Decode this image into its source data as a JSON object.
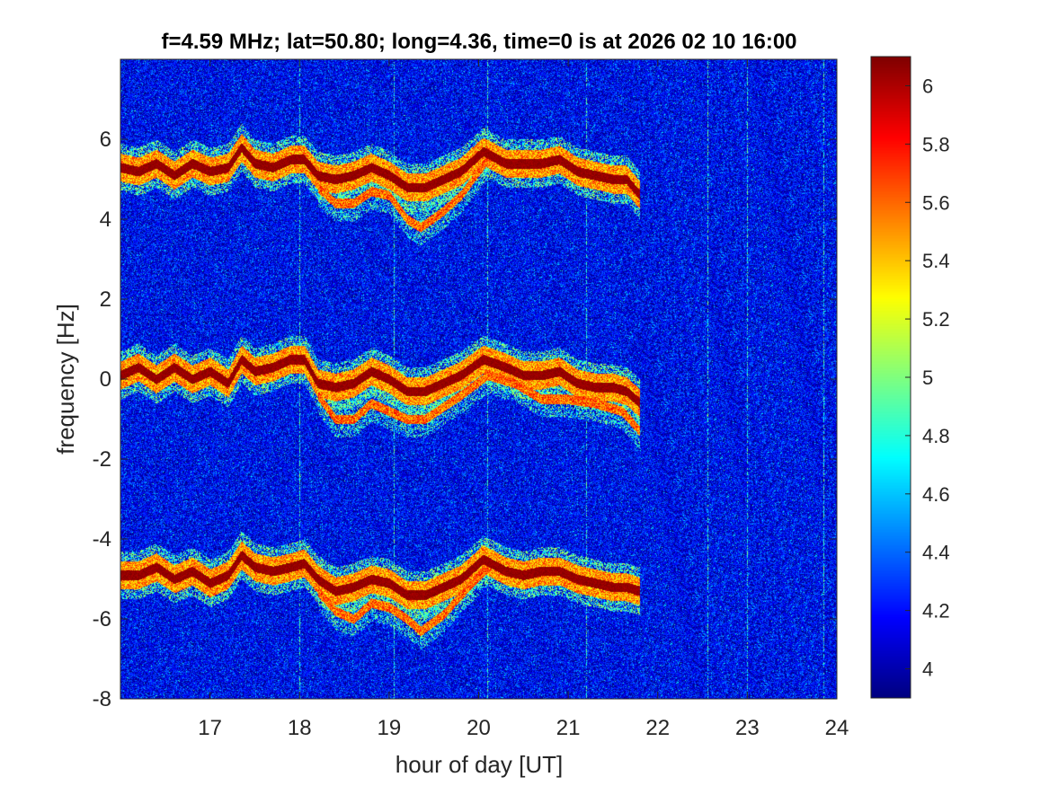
{
  "chart_data": {
    "type": "heatmap",
    "title": "f=4.59 MHz;  lat=50.80; long=4.36, time=0 is at 2026 02 10 16:00",
    "xlabel": "hour of day [UT]",
    "ylabel": "frequency [Hz]",
    "xlim": [
      16,
      24
    ],
    "ylim": [
      -8,
      8
    ],
    "x_ticks": [
      17,
      18,
      19,
      20,
      21,
      22,
      23,
      24
    ],
    "y_ticks": [
      -8,
      -6,
      -4,
      -2,
      0,
      2,
      4,
      6
    ],
    "colorbar": {
      "range": [
        3.9,
        6.1
      ],
      "ticks": [
        4,
        4.2,
        4.4,
        4.6,
        4.8,
        5,
        5.2,
        5.4,
        5.6,
        5.8,
        6
      ],
      "colormap": "jet"
    },
    "signal_end_hour": 21.8,
    "traces": [
      {
        "center_offset_hz": 0,
        "points": [
          [
            16.0,
            0.1
          ],
          [
            16.2,
            0.3
          ],
          [
            16.4,
            0.0
          ],
          [
            16.6,
            0.3
          ],
          [
            16.8,
            0.0
          ],
          [
            17.0,
            0.2
          ],
          [
            17.2,
            -0.1
          ],
          [
            17.35,
            0.5
          ],
          [
            17.5,
            0.2
          ],
          [
            17.7,
            0.3
          ],
          [
            17.9,
            0.5
          ],
          [
            18.05,
            0.5
          ],
          [
            18.2,
            -0.1
          ],
          [
            18.4,
            -0.2
          ],
          [
            18.6,
            -0.1
          ],
          [
            18.8,
            0.2
          ],
          [
            19.0,
            0.0
          ],
          [
            19.2,
            -0.3
          ],
          [
            19.4,
            -0.3
          ],
          [
            19.6,
            -0.1
          ],
          [
            19.8,
            0.1
          ],
          [
            20.05,
            0.5
          ],
          [
            20.3,
            0.3
          ],
          [
            20.5,
            0.1
          ],
          [
            20.7,
            0.1
          ],
          [
            20.9,
            0.2
          ],
          [
            21.1,
            -0.1
          ],
          [
            21.3,
            -0.2
          ],
          [
            21.5,
            -0.2
          ],
          [
            21.65,
            -0.3
          ],
          [
            21.8,
            -0.6
          ]
        ]
      },
      {
        "center_offset_hz": 5.2,
        "points": [
          [
            16.0,
            5.3
          ],
          [
            16.2,
            5.2
          ],
          [
            16.4,
            5.4
          ],
          [
            16.6,
            5.1
          ],
          [
            16.8,
            5.4
          ],
          [
            17.0,
            5.2
          ],
          [
            17.2,
            5.3
          ],
          [
            17.35,
            5.8
          ],
          [
            17.5,
            5.4
          ],
          [
            17.7,
            5.3
          ],
          [
            17.9,
            5.5
          ],
          [
            18.05,
            5.5
          ],
          [
            18.2,
            5.1
          ],
          [
            18.4,
            5.0
          ],
          [
            18.6,
            5.1
          ],
          [
            18.8,
            5.3
          ],
          [
            19.0,
            5.1
          ],
          [
            19.2,
            4.8
          ],
          [
            19.4,
            4.8
          ],
          [
            19.6,
            5.0
          ],
          [
            19.8,
            5.2
          ],
          [
            20.05,
            5.7
          ],
          [
            20.3,
            5.4
          ],
          [
            20.5,
            5.4
          ],
          [
            20.7,
            5.4
          ],
          [
            20.9,
            5.5
          ],
          [
            21.1,
            5.2
          ],
          [
            21.3,
            5.1
          ],
          [
            21.5,
            5.0
          ],
          [
            21.65,
            5.0
          ],
          [
            21.8,
            4.6
          ]
        ]
      },
      {
        "center_offset_hz": -5.0,
        "points": [
          [
            16.0,
            -4.9
          ],
          [
            16.2,
            -4.9
          ],
          [
            16.4,
            -4.7
          ],
          [
            16.6,
            -5.0
          ],
          [
            16.8,
            -4.8
          ],
          [
            17.0,
            -5.1
          ],
          [
            17.2,
            -4.9
          ],
          [
            17.35,
            -4.4
          ],
          [
            17.5,
            -4.7
          ],
          [
            17.7,
            -4.8
          ],
          [
            17.9,
            -4.7
          ],
          [
            18.05,
            -4.6
          ],
          [
            18.2,
            -5.0
          ],
          [
            18.4,
            -5.3
          ],
          [
            18.6,
            -5.2
          ],
          [
            18.8,
            -5.0
          ],
          [
            19.0,
            -5.1
          ],
          [
            19.2,
            -5.4
          ],
          [
            19.4,
            -5.4
          ],
          [
            19.6,
            -5.2
          ],
          [
            19.8,
            -5.0
          ],
          [
            20.05,
            -4.5
          ],
          [
            20.3,
            -4.8
          ],
          [
            20.5,
            -4.9
          ],
          [
            20.7,
            -4.8
          ],
          [
            20.9,
            -4.8
          ],
          [
            21.1,
            -5.0
          ],
          [
            21.3,
            -5.1
          ],
          [
            21.5,
            -5.2
          ],
          [
            21.65,
            -5.2
          ],
          [
            21.8,
            -5.3
          ]
        ]
      }
    ],
    "secondary_traces": [
      {
        "points": [
          [
            18.2,
            -0.4
          ],
          [
            18.4,
            -1.0
          ],
          [
            18.6,
            -1.0
          ],
          [
            18.8,
            -0.6
          ],
          [
            19.0,
            -0.8
          ],
          [
            19.2,
            -1.0
          ],
          [
            19.4,
            -1.0
          ],
          [
            19.6,
            -0.7
          ],
          [
            19.8,
            -0.4
          ],
          [
            20.1,
            0.1
          ],
          [
            20.4,
            -0.1
          ],
          [
            20.7,
            -0.5
          ],
          [
            21.0,
            -0.5
          ],
          [
            21.3,
            -0.6
          ],
          [
            21.6,
            -0.8
          ],
          [
            21.8,
            -1.3
          ]
        ]
      },
      {
        "points": [
          [
            18.2,
            4.8
          ],
          [
            18.4,
            4.4
          ],
          [
            18.6,
            4.4
          ],
          [
            18.8,
            4.7
          ],
          [
            19.0,
            4.6
          ],
          [
            19.2,
            4.0
          ],
          [
            19.35,
            3.8
          ],
          [
            19.6,
            4.2
          ],
          [
            19.8,
            4.6
          ],
          [
            20.1,
            5.5
          ]
        ]
      },
      {
        "points": [
          [
            18.2,
            -5.3
          ],
          [
            18.4,
            -5.8
          ],
          [
            18.6,
            -6.0
          ],
          [
            18.8,
            -5.6
          ],
          [
            19.0,
            -5.7
          ],
          [
            19.2,
            -6.0
          ],
          [
            19.35,
            -6.3
          ],
          [
            19.6,
            -5.9
          ],
          [
            19.8,
            -5.4
          ],
          [
            20.1,
            -4.7
          ]
        ]
      }
    ],
    "vertical_lines_hour": [
      18.0,
      19.05,
      20.1,
      21.2,
      22.55,
      23.0,
      23.85
    ]
  }
}
